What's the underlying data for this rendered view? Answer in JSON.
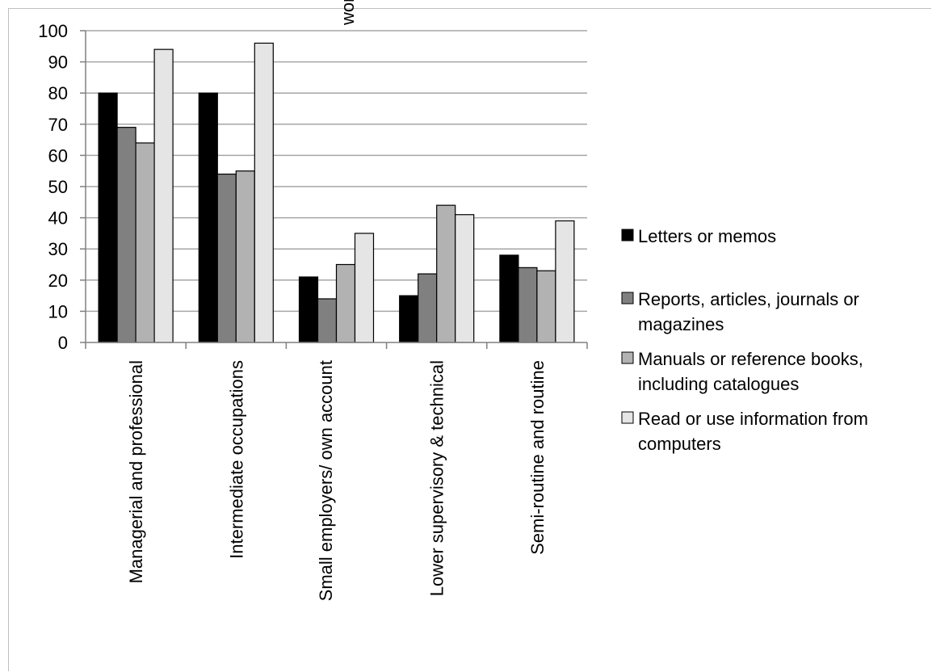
{
  "chart_data": {
    "type": "bar",
    "title": "",
    "xlabel": "",
    "ylabel": "",
    "ylim": [
      0,
      100
    ],
    "yticks": [
      0,
      10,
      20,
      30,
      40,
      50,
      60,
      70,
      80,
      90,
      100
    ],
    "grid": true,
    "legend_position": "right",
    "categories": [
      [
        "Managerial and professional"
      ],
      [
        "Intermediate occupations"
      ],
      [
        "Small employers/ own account",
        "workers"
      ],
      [
        "Lower supervisory & technical"
      ],
      [
        "Semi-routine and routine"
      ]
    ],
    "series": [
      {
        "name": "Letters or memos",
        "legend_lines": [
          "Letters or memos"
        ],
        "color": "#000000",
        "values": [
          80,
          80,
          21,
          15,
          28
        ]
      },
      {
        "name": "Reports, articles, journals or magazines",
        "legend_lines": [
          "Reports, articles, journals or",
          "magazines"
        ],
        "color": "#808080",
        "values": [
          69,
          54,
          14,
          22,
          24
        ]
      },
      {
        "name": "Manuals or reference books, including catalogues",
        "legend_lines": [
          "Manuals or reference books,",
          "including catalogues"
        ],
        "color": "#b2b2b2",
        "values": [
          64,
          55,
          25,
          44,
          23
        ]
      },
      {
        "name": "Read or use information from computers",
        "legend_lines": [
          "Read or use information from",
          "computers"
        ],
        "color": "#e5e5e5",
        "values": [
          94,
          96,
          35,
          41,
          39
        ]
      }
    ]
  }
}
